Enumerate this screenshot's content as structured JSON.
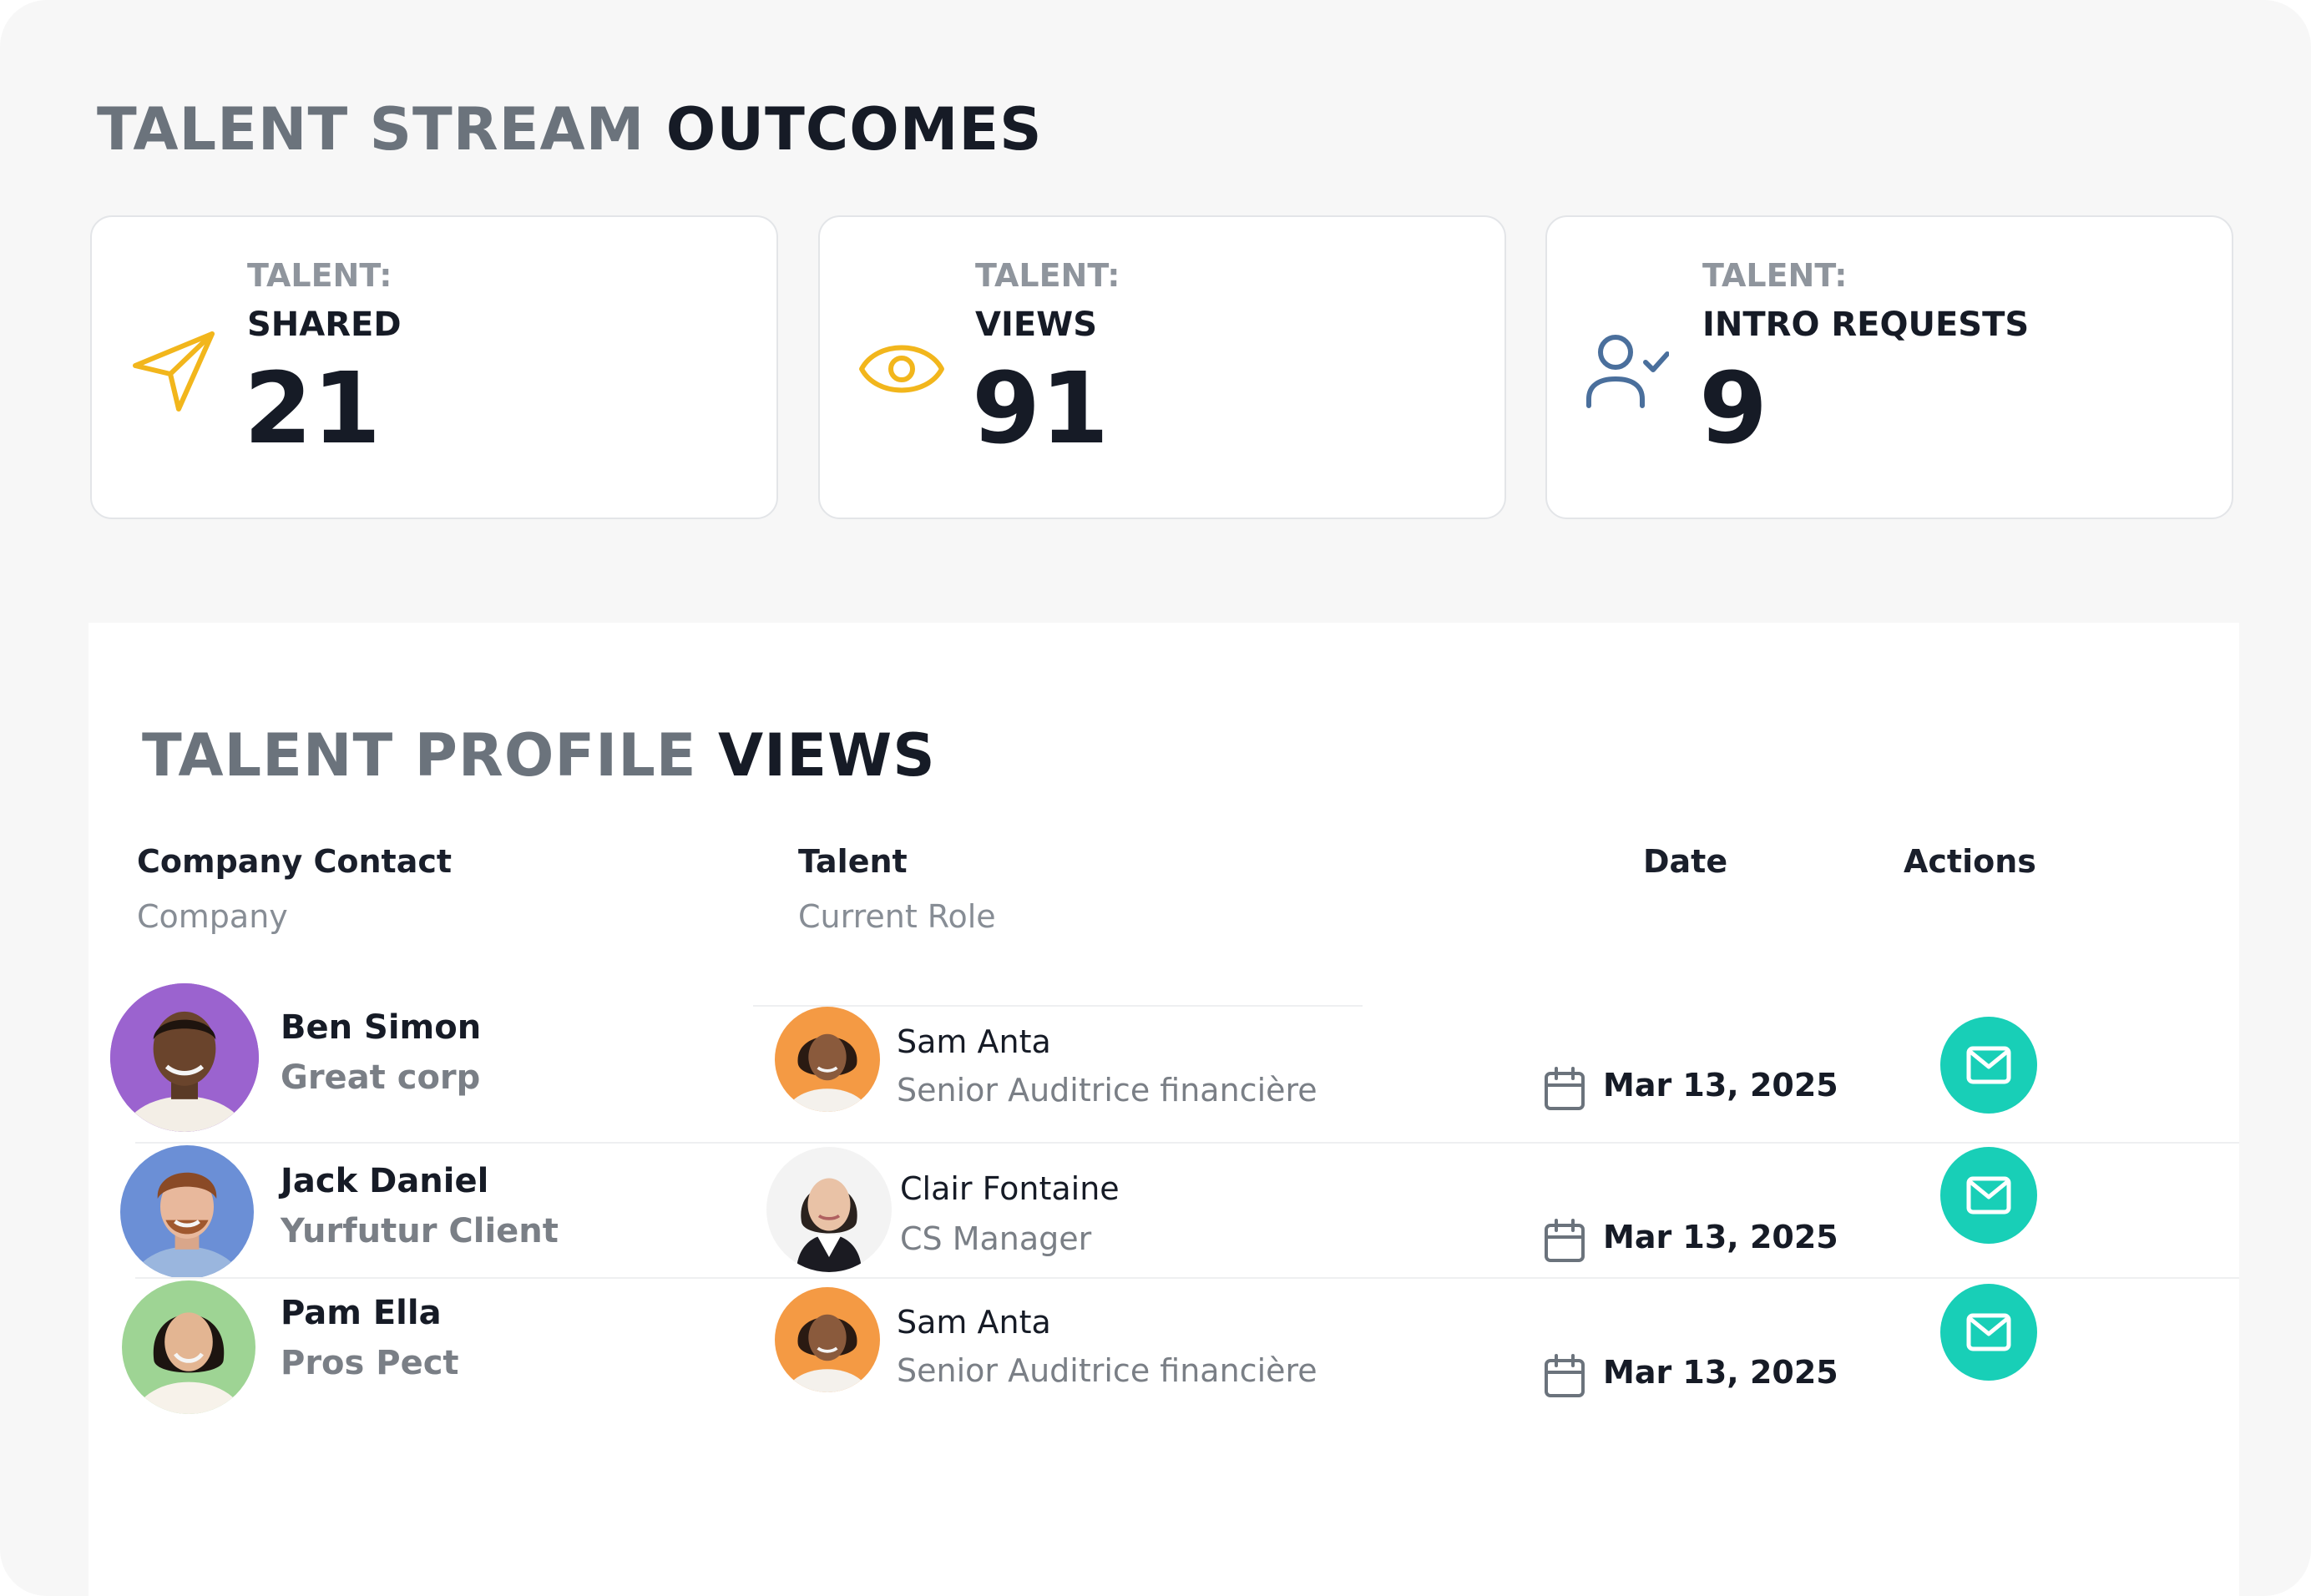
{
  "outcomes": {
    "title_light": "TALENT STREAM",
    "title_dark": "OUTCOMES",
    "cards": [
      {
        "label": "TALENT:",
        "sub": "SHARED",
        "value": "21",
        "icon": "paper-plane-icon"
      },
      {
        "label": "TALENT:",
        "sub": "VIEWS",
        "value": "91",
        "icon": "eye-icon"
      },
      {
        "label": "TALENT:",
        "sub": "INTRO REQUESTS",
        "value": "9",
        "icon": "user-check-icon"
      }
    ]
  },
  "views": {
    "title_light": "TALENT PROFILE",
    "title_dark": "VIEWS",
    "headers": {
      "contact": "Company Contact",
      "company": "Company",
      "talent": "Talent",
      "role": "Current Role",
      "date": "Date",
      "actions": "Actions"
    },
    "rows": [
      {
        "contact_name": "Ben Simon",
        "company": "Great corp",
        "talent_name": "Sam Anta",
        "role": "Senior Auditrice financière",
        "date": "Mar 13, 2025"
      },
      {
        "contact_name": "Jack Daniel",
        "company": "Yurfutur Client",
        "talent_name": "Clair Fontaine",
        "role": "CS Manager",
        "date": "Mar 13, 2025"
      },
      {
        "contact_name": "Pam Ella",
        "company": "Pros Pect",
        "talent_name": "Sam Anta",
        "role": "Senior Auditrice financière",
        "date": "Mar 13, 2025"
      }
    ]
  },
  "colors": {
    "accent_yellow": "#f2b61c",
    "accent_blue": "#4a6f9c",
    "action_teal": "#18cfb7",
    "avatar_purple": "#9b63cf",
    "avatar_blue": "#6b8fd6",
    "avatar_green": "#9ed494",
    "avatar_orange": "#f49a44"
  }
}
